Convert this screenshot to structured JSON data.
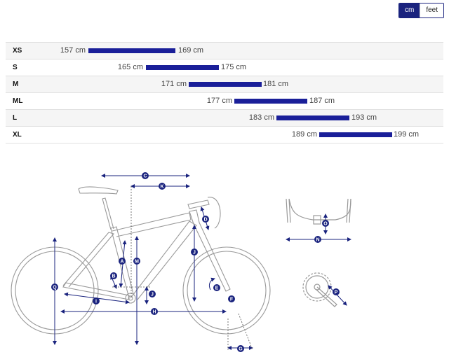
{
  "units": {
    "options": [
      "cm",
      "feet"
    ],
    "selected": "cm"
  },
  "sizes": [
    {
      "size": "XS",
      "min": "157 cm",
      "max": "169 cm"
    },
    {
      "size": "S",
      "min": "165 cm",
      "max": "175 cm"
    },
    {
      "size": "M",
      "min": "171 cm",
      "max": "181 cm"
    },
    {
      "size": "ML",
      "min": "177 cm",
      "max": "187 cm"
    },
    {
      "size": "L",
      "min": "183 cm",
      "max": "193 cm"
    },
    {
      "size": "XL",
      "min": "189 cm",
      "max": "199 cm"
    }
  ],
  "measurements": [
    "A",
    "B",
    "C",
    "D",
    "E",
    "F",
    "G",
    "H",
    "I",
    "J",
    "K",
    "L",
    "M",
    "N",
    "O",
    "P",
    "Q"
  ],
  "colors": {
    "accent": "#1a237e",
    "bar": "#1a1f99",
    "line": "#8a8a8a"
  }
}
